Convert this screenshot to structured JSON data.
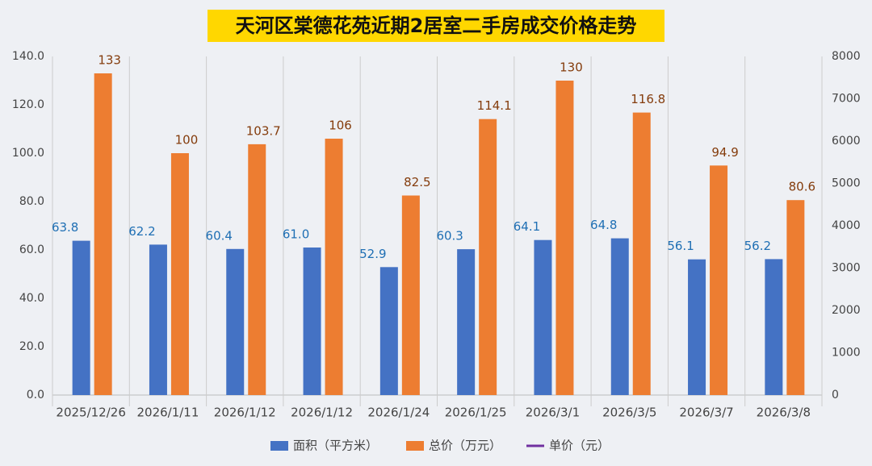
{
  "chart_data": {
    "type": "bar",
    "title": "天河区棠德花苑近期2居室二手房成交价格走势",
    "categories": [
      "2025/12/26",
      "2026/1/11",
      "2026/1/12",
      "2026/1/12",
      "2026/1/24",
      "2026/1/25",
      "2026/3/1",
      "2026/3/5",
      "2026/3/7",
      "2026/3/8"
    ],
    "series": [
      {
        "name": "面积（平方米）",
        "color": "#4472c4",
        "values": [
          63.8,
          62.2,
          60.4,
          61.0,
          52.9,
          60.3,
          64.1,
          64.8,
          56.1,
          56.2
        ],
        "value_labels": [
          "63.8",
          "62.2",
          "60.4",
          "61.0",
          "52.9",
          "60.3",
          "64.1",
          "64.8",
          "56.1",
          "56.2"
        ]
      },
      {
        "name": "总价（万元）",
        "color": "#ed7d31",
        "values": [
          133,
          100,
          103.7,
          106,
          82.5,
          114.1,
          130,
          116.8,
          94.9,
          80.6
        ]
      },
      {
        "name": "单价（元）",
        "color": "#7030a0",
        "axis": "y2",
        "values": [
          null,
          null,
          null,
          null,
          null,
          null,
          null,
          null,
          null,
          null
        ]
      }
    ],
    "ylim": [
      0,
      140
    ],
    "yticks": [
      {
        "value": 0,
        "label": "0.0"
      },
      {
        "value": 20,
        "label": "20.0"
      },
      {
        "value": 40,
        "label": "40.0"
      },
      {
        "value": 60,
        "label": "60.0"
      },
      {
        "value": 80,
        "label": "80.0"
      },
      {
        "value": 100,
        "label": "100.0"
      },
      {
        "value": 120,
        "label": "120.0"
      },
      {
        "value": 140,
        "label": "140.0"
      }
    ],
    "y2lim": [
      0,
      8000
    ],
    "y2ticks": [
      0,
      1000,
      2000,
      3000,
      4000,
      5000,
      6000,
      7000,
      8000
    ],
    "legend": "bottom"
  }
}
